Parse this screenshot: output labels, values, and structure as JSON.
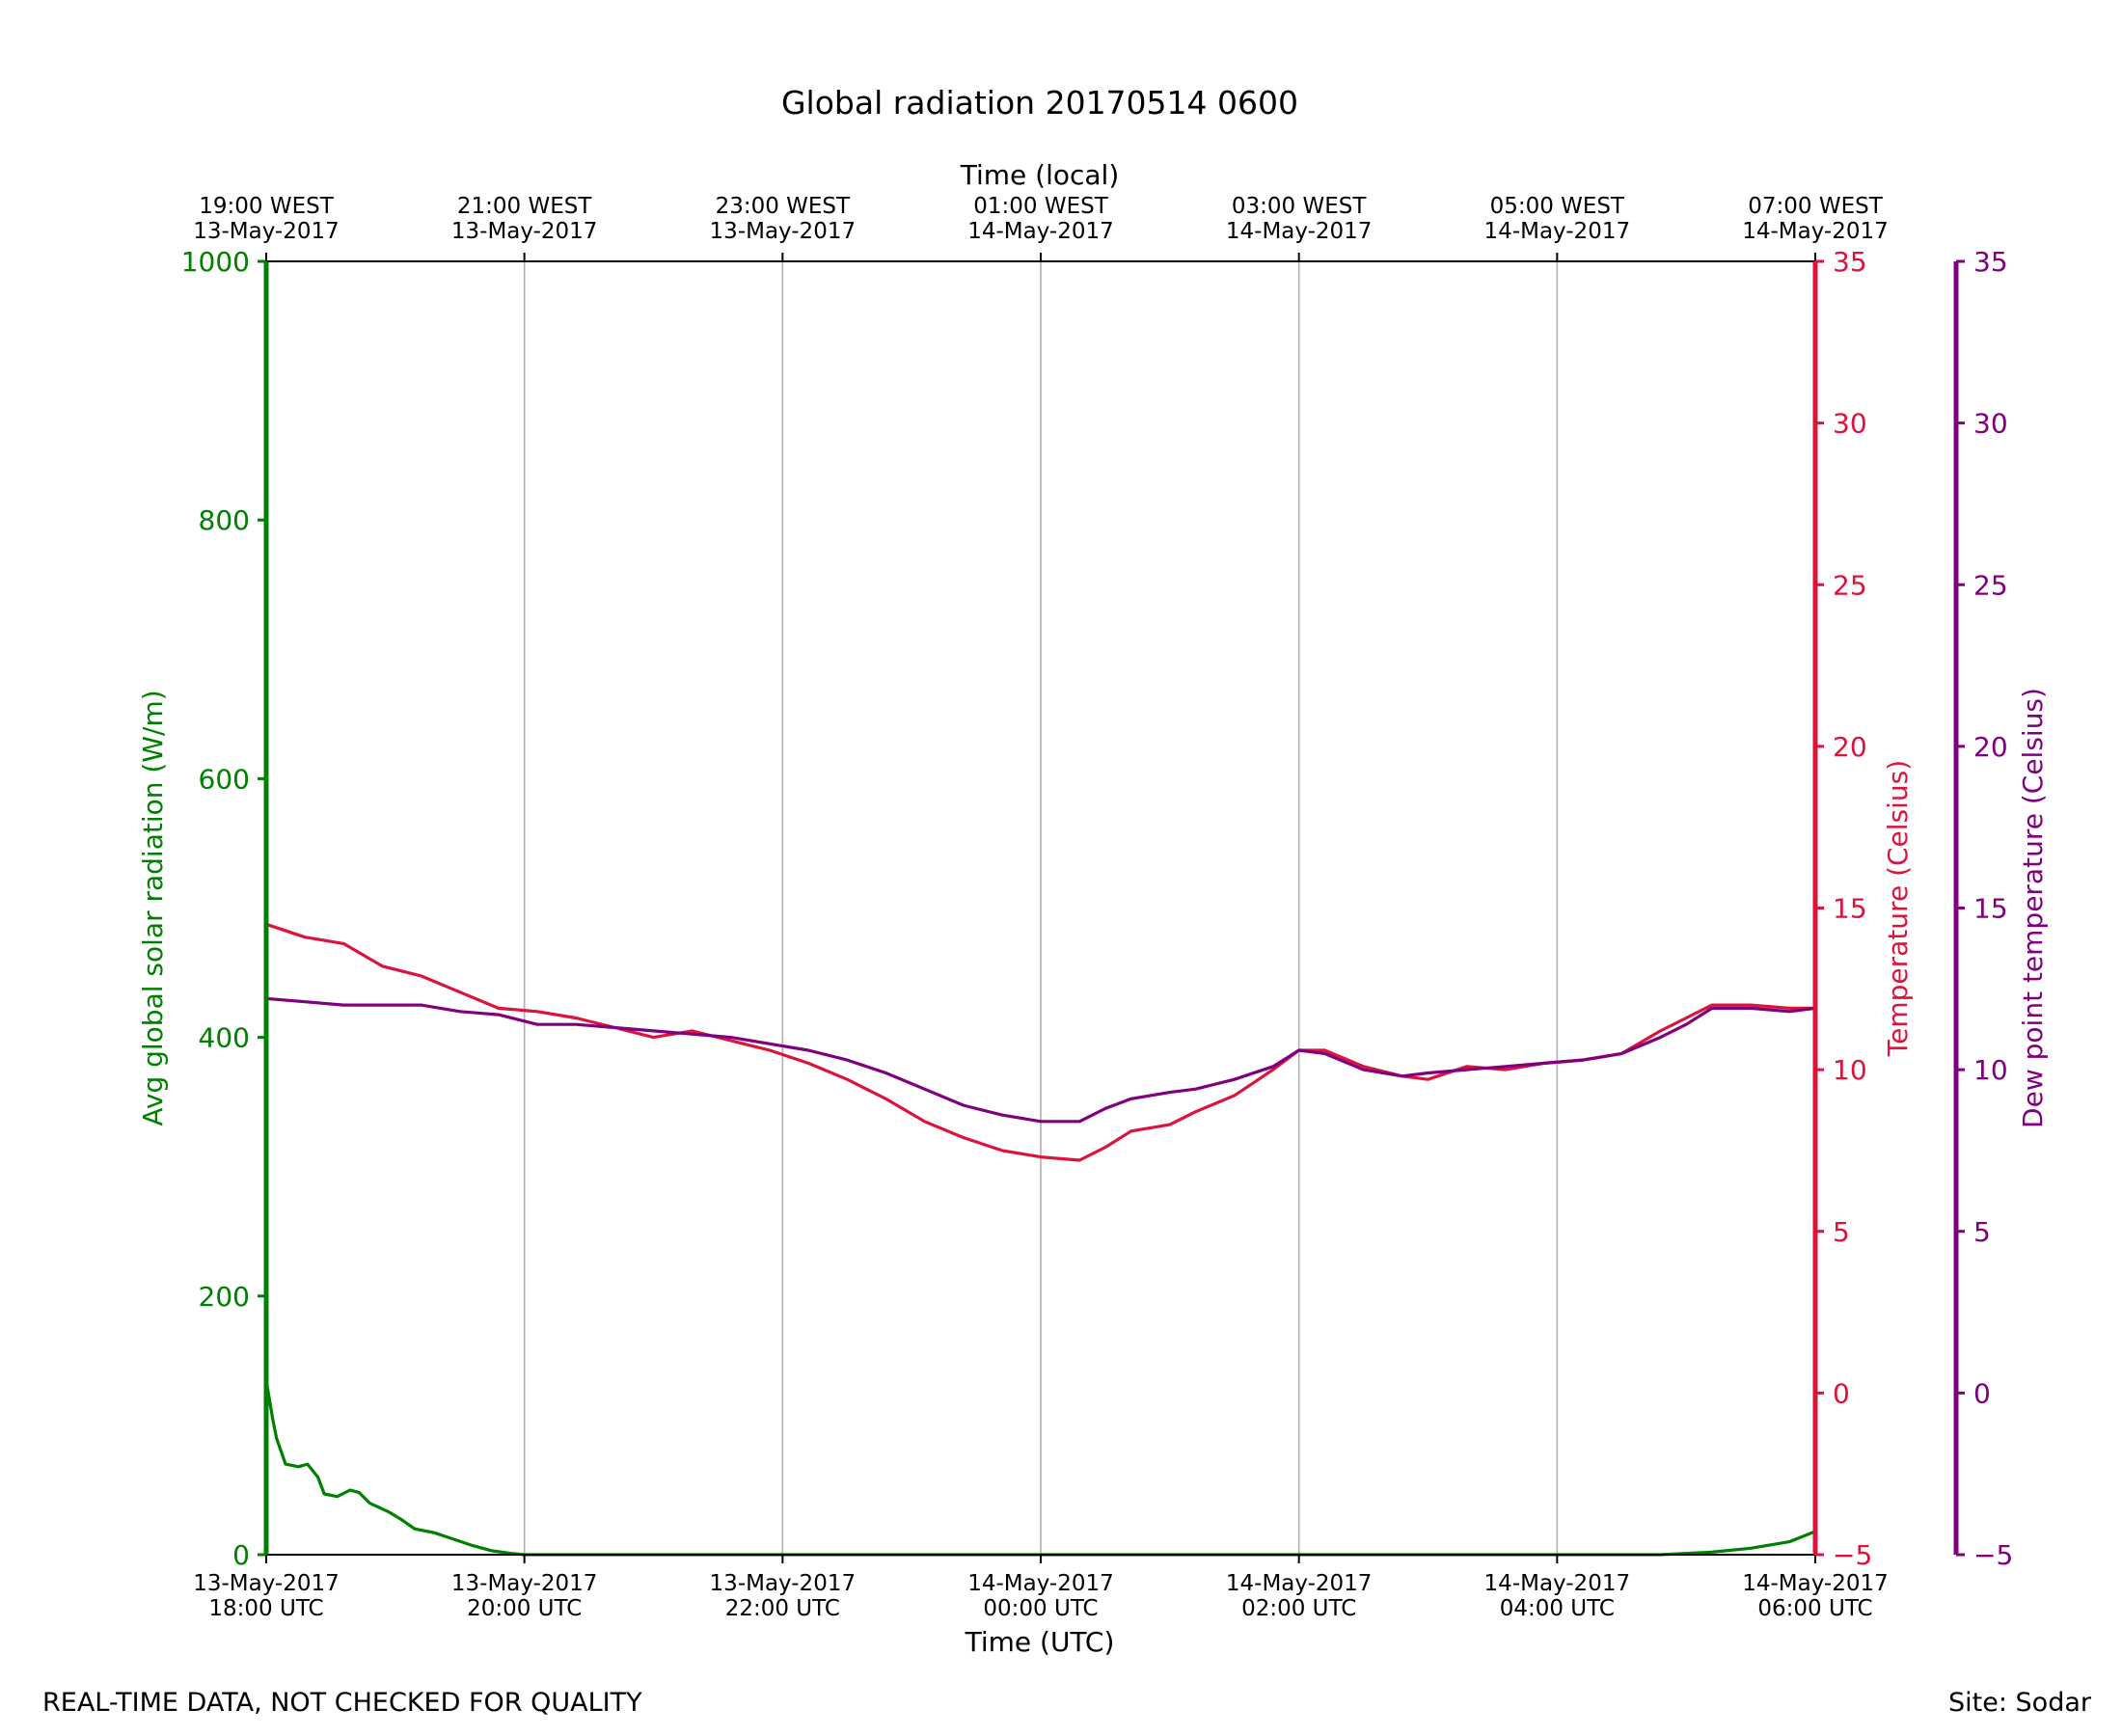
{
  "footer": {
    "left": "REAL-TIME DATA, NOT CHECKED FOR QUALITY",
    "right": "Site: Sodar"
  },
  "chart_data": {
    "type": "line",
    "title": "Global radiation 20170514 0600",
    "xlabel": "Time (UTC)",
    "xlabel_top": "Time (local)",
    "x_range_hours": [
      0,
      12
    ],
    "bottom_ticks": [
      {
        "hour": 0,
        "line1": "13-May-2017",
        "line2": "18:00 UTC"
      },
      {
        "hour": 2,
        "line1": "13-May-2017",
        "line2": "20:00 UTC"
      },
      {
        "hour": 4,
        "line1": "13-May-2017",
        "line2": "22:00 UTC"
      },
      {
        "hour": 6,
        "line1": "14-May-2017",
        "line2": "00:00 UTC"
      },
      {
        "hour": 8,
        "line1": "14-May-2017",
        "line2": "02:00 UTC"
      },
      {
        "hour": 10,
        "line1": "14-May-2017",
        "line2": "04:00 UTC"
      },
      {
        "hour": 12,
        "line1": "14-May-2017",
        "line2": "06:00 UTC"
      }
    ],
    "top_ticks": [
      {
        "hour": 0,
        "line1": "19:00 WEST",
        "line2": "13-May-2017"
      },
      {
        "hour": 2,
        "line1": "21:00 WEST",
        "line2": "13-May-2017"
      },
      {
        "hour": 4,
        "line1": "23:00 WEST",
        "line2": "13-May-2017"
      },
      {
        "hour": 6,
        "line1": "01:00 WEST",
        "line2": "14-May-2017"
      },
      {
        "hour": 8,
        "line1": "03:00 WEST",
        "line2": "14-May-2017"
      },
      {
        "hour": 10,
        "line1": "05:00 WEST",
        "line2": "14-May-2017"
      },
      {
        "hour": 12,
        "line1": "07:00 WEST",
        "line2": "14-May-2017"
      }
    ],
    "grid": "vertical",
    "axes": {
      "radiation": {
        "label": "Avg global solar radiation (W/m)",
        "ylim": [
          0,
          1000
        ],
        "ticks": [
          "0",
          "200",
          "400",
          "600",
          "800",
          "1000"
        ],
        "color": "#008000"
      },
      "temperature": {
        "label": "Temperature (Celsius)",
        "ylim": [
          -5,
          35
        ],
        "ticks": [
          "−5",
          "0",
          "5",
          "10",
          "15",
          "20",
          "25",
          "30",
          "35"
        ],
        "color": "#dc143c"
      },
      "dewpoint": {
        "label": "Dew point temperature (Celsius)",
        "ylim": [
          -5,
          35
        ],
        "ticks": [
          "−5",
          "0",
          "5",
          "10",
          "15",
          "20",
          "25",
          "30",
          "35"
        ],
        "color": "#800080"
      }
    },
    "series": [
      {
        "key": "radiation",
        "axis": "radiation",
        "color": "#008000",
        "points": [
          [
            0,
            135
          ],
          [
            0.05,
            105
          ],
          [
            0.08,
            90
          ],
          [
            0.15,
            70
          ],
          [
            0.25,
            68
          ],
          [
            0.32,
            70
          ],
          [
            0.4,
            60
          ],
          [
            0.45,
            47
          ],
          [
            0.55,
            45
          ],
          [
            0.65,
            50
          ],
          [
            0.72,
            48
          ],
          [
            0.8,
            40
          ],
          [
            0.95,
            33
          ],
          [
            1.05,
            27
          ],
          [
            1.15,
            20
          ],
          [
            1.3,
            17
          ],
          [
            1.45,
            12
          ],
          [
            1.6,
            7
          ],
          [
            1.75,
            3
          ],
          [
            1.9,
            1
          ],
          [
            2.0,
            0
          ],
          [
            6,
            0
          ],
          [
            10,
            0
          ],
          [
            10.8,
            0
          ],
          [
            11.2,
            2
          ],
          [
            11.5,
            5
          ],
          [
            11.8,
            10
          ],
          [
            12,
            18
          ]
        ]
      },
      {
        "key": "temperature",
        "axis": "temperature",
        "color": "#dc143c",
        "points": [
          [
            0,
            14.5
          ],
          [
            0.3,
            14.1
          ],
          [
            0.6,
            13.9
          ],
          [
            0.9,
            13.2
          ],
          [
            1.2,
            12.9
          ],
          [
            1.5,
            12.4
          ],
          [
            1.8,
            11.9
          ],
          [
            2.1,
            11.8
          ],
          [
            2.4,
            11.6
          ],
          [
            2.7,
            11.3
          ],
          [
            3.0,
            11.0
          ],
          [
            3.3,
            11.2
          ],
          [
            3.6,
            10.9
          ],
          [
            3.9,
            10.6
          ],
          [
            4.2,
            10.2
          ],
          [
            4.5,
            9.7
          ],
          [
            4.8,
            9.1
          ],
          [
            5.1,
            8.4
          ],
          [
            5.4,
            7.9
          ],
          [
            5.7,
            7.5
          ],
          [
            6.0,
            7.3
          ],
          [
            6.3,
            7.2
          ],
          [
            6.5,
            7.6
          ],
          [
            6.7,
            8.1
          ],
          [
            7.0,
            8.3
          ],
          [
            7.2,
            8.7
          ],
          [
            7.5,
            9.2
          ],
          [
            7.8,
            10.0
          ],
          [
            8.0,
            10.6
          ],
          [
            8.2,
            10.6
          ],
          [
            8.5,
            10.1
          ],
          [
            8.8,
            9.8
          ],
          [
            9.0,
            9.7
          ],
          [
            9.3,
            10.1
          ],
          [
            9.6,
            10.0
          ],
          [
            9.9,
            10.2
          ],
          [
            10.2,
            10.3
          ],
          [
            10.5,
            10.5
          ],
          [
            10.8,
            11.2
          ],
          [
            11.0,
            11.6
          ],
          [
            11.2,
            12.0
          ],
          [
            11.5,
            12.0
          ],
          [
            11.8,
            11.9
          ],
          [
            12.0,
            11.9
          ]
        ]
      },
      {
        "key": "dewpoint",
        "axis": "dewpoint",
        "color": "#800080",
        "points": [
          [
            0,
            12.2
          ],
          [
            0.3,
            12.1
          ],
          [
            0.6,
            12.0
          ],
          [
            0.9,
            12.0
          ],
          [
            1.2,
            12.0
          ],
          [
            1.5,
            11.8
          ],
          [
            1.8,
            11.7
          ],
          [
            2.1,
            11.4
          ],
          [
            2.4,
            11.4
          ],
          [
            2.7,
            11.3
          ],
          [
            3.0,
            11.2
          ],
          [
            3.3,
            11.1
          ],
          [
            3.6,
            11.0
          ],
          [
            3.9,
            10.8
          ],
          [
            4.2,
            10.6
          ],
          [
            4.5,
            10.3
          ],
          [
            4.8,
            9.9
          ],
          [
            5.1,
            9.4
          ],
          [
            5.4,
            8.9
          ],
          [
            5.7,
            8.6
          ],
          [
            6.0,
            8.4
          ],
          [
            6.3,
            8.4
          ],
          [
            6.5,
            8.8
          ],
          [
            6.7,
            9.1
          ],
          [
            7.0,
            9.3
          ],
          [
            7.2,
            9.4
          ],
          [
            7.5,
            9.7
          ],
          [
            7.8,
            10.1
          ],
          [
            8.0,
            10.6
          ],
          [
            8.2,
            10.5
          ],
          [
            8.5,
            10.0
          ],
          [
            8.8,
            9.8
          ],
          [
            9.0,
            9.9
          ],
          [
            9.3,
            10.0
          ],
          [
            9.6,
            10.1
          ],
          [
            9.9,
            10.2
          ],
          [
            10.2,
            10.3
          ],
          [
            10.5,
            10.5
          ],
          [
            10.8,
            11.0
          ],
          [
            11.0,
            11.4
          ],
          [
            11.2,
            11.9
          ],
          [
            11.5,
            11.9
          ],
          [
            11.8,
            11.8
          ],
          [
            12.0,
            11.9
          ]
        ]
      }
    ]
  }
}
